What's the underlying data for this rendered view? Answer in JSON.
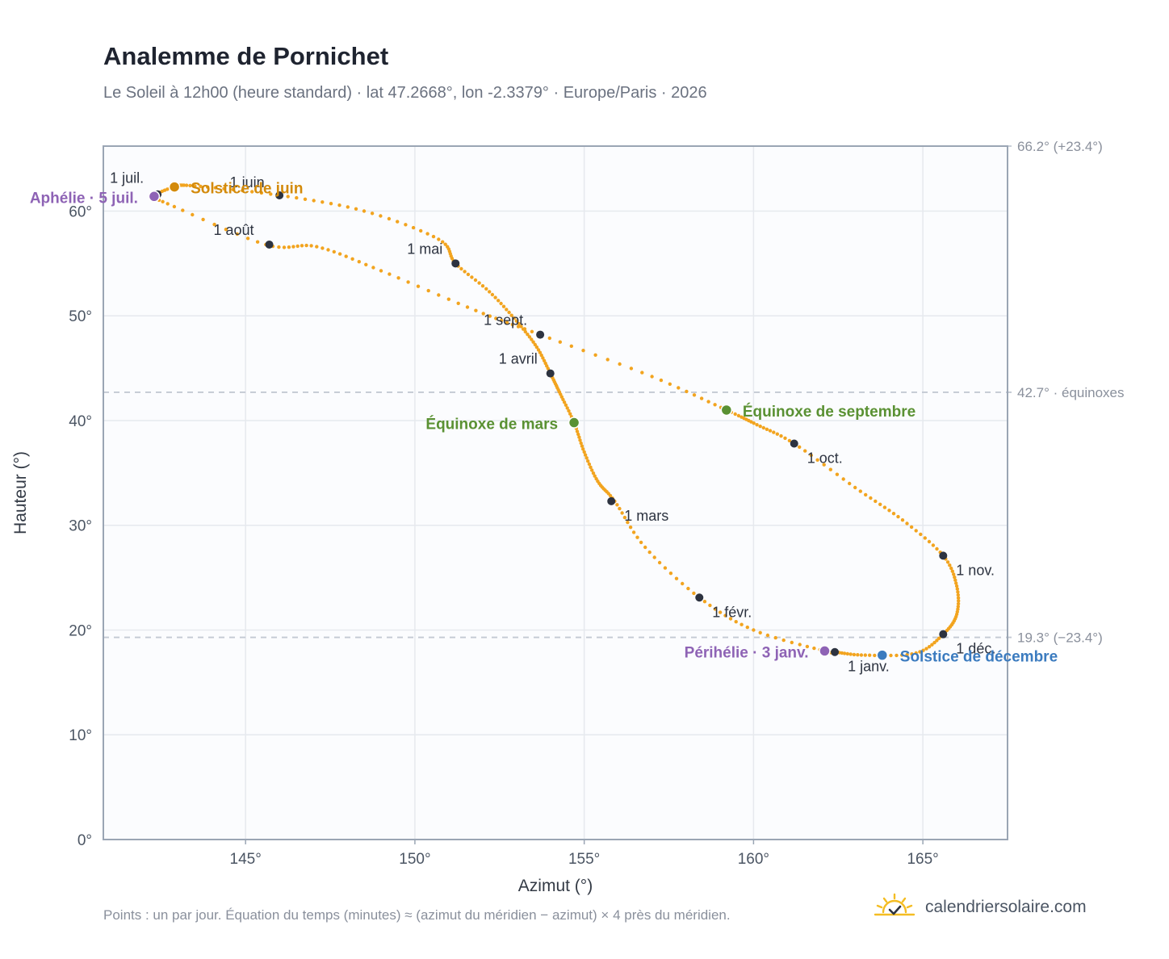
{
  "header": {
    "title": "Analemme de Pornichet",
    "subtitle": "Le Soleil à 12h00 (heure standard) · lat 47.2668°, lon -2.3379° · Europe/Paris · 2026"
  },
  "footer": {
    "note": "Points : un par jour. Équation du temps (minutes) ≈ (azimut du méridien − azimut) × 4 près du méridien.",
    "brand": "calendriersolaire.com"
  },
  "colors": {
    "curve": "#f2a41f",
    "month_marker": "#2d3340",
    "equinox": "#5a9133",
    "june_solstice": "#d38a0b",
    "december_solstice": "#3b7bbf",
    "apsides": "#8e63b5",
    "reference_line": "#c3c9d3",
    "grid": "#e6e9ee",
    "frame": "#9aa5b4",
    "plot_bg": "#fbfcfe"
  },
  "chart_data": {
    "type": "scatter",
    "xlabel": "Azimut (°)",
    "ylabel": "Hauteur (°)",
    "xlim": [
      140.8,
      167.5
    ],
    "ylim": [
      0,
      66.2
    ],
    "xticks": [
      145,
      150,
      155,
      160,
      165
    ],
    "xtick_labels": [
      "145°",
      "150°",
      "155°",
      "160°",
      "165°"
    ],
    "yticks": [
      0,
      10,
      20,
      30,
      40,
      50,
      60
    ],
    "ytick_labels": [
      "0°",
      "10°",
      "20°",
      "30°",
      "40°",
      "50°",
      "60°"
    ],
    "grid": true,
    "reference_lines": [
      {
        "y": 66.2,
        "label": "66.2° (+23.4°)"
      },
      {
        "y": 42.7,
        "label": "42.7° · équinoxes"
      },
      {
        "y": 19.3,
        "label": "19.3° (−23.4°)"
      }
    ],
    "series": [
      {
        "marker": "one point per day",
        "x": [
          162.1,
          162.4,
          163.3,
          164.8,
          165.6,
          166.0,
          166.0,
          165.6,
          164.4,
          163.0,
          161.2,
          160.1,
          159.2,
          157.0,
          153.7,
          151.8,
          149.0,
          147.1,
          145.6,
          142.7,
          142.3,
          142.9,
          143.5,
          146.0,
          148.5,
          150.7,
          151.2,
          152.2,
          153.0,
          153.6,
          154.0,
          154.3,
          154.7,
          155.0,
          155.4,
          155.9,
          156.8,
          158.4,
          160.0,
          162.1
        ],
        "y": [
          18.0,
          17.9,
          17.6,
          17.8,
          19.6,
          21.5,
          24.2,
          27.1,
          30.5,
          33.6,
          37.8,
          39.6,
          41.0,
          44.2,
          48.2,
          50.5,
          54.3,
          56.6,
          56.8,
          60.7,
          61.4,
          62.3,
          62.4,
          61.5,
          60.0,
          57.3,
          55.0,
          52.3,
          49.5,
          47.0,
          44.5,
          42.5,
          39.8,
          37.0,
          34.2,
          32.3,
          27.9,
          23.1,
          20.0,
          18.0
        ]
      }
    ],
    "month_markers": [
      {
        "label": "1 janv.",
        "x": 162.4,
        "y": 17.9
      },
      {
        "label": "1 févr.",
        "x": 158.4,
        "y": 23.1
      },
      {
        "label": "1 mars",
        "x": 155.8,
        "y": 32.3
      },
      {
        "label": "1 avril",
        "x": 154.0,
        "y": 44.5
      },
      {
        "label": "1 mai",
        "x": 151.2,
        "y": 55.0
      },
      {
        "label": "1 juin",
        "x": 146.0,
        "y": 61.5
      },
      {
        "label": "1 juil.",
        "x": 142.4,
        "y": 61.6
      },
      {
        "label": "1 août",
        "x": 145.7,
        "y": 56.8
      },
      {
        "label": "1 sept.",
        "x": 153.7,
        "y": 48.2
      },
      {
        "label": "1 oct.",
        "x": 161.2,
        "y": 37.8
      },
      {
        "label": "1 nov.",
        "x": 165.6,
        "y": 27.1
      },
      {
        "label": "1 déc.",
        "x": 165.6,
        "y": 19.6
      }
    ],
    "events": [
      {
        "label": "Solstice de juin",
        "x": 142.9,
        "y": 62.3,
        "color_key": "june_solstice"
      },
      {
        "label": "Solstice de décembre",
        "x": 163.8,
        "y": 17.6,
        "color_key": "december_solstice"
      },
      {
        "label": "Équinoxe de mars",
        "x": 154.7,
        "y": 39.8,
        "color_key": "equinox"
      },
      {
        "label": "Équinoxe de septembre",
        "x": 159.2,
        "y": 41.0,
        "color_key": "equinox"
      },
      {
        "label": "Aphélie · 5 juil.",
        "x": 142.3,
        "y": 61.4,
        "color_key": "apsides"
      },
      {
        "label": "Périhélie · 3 janv.",
        "x": 162.1,
        "y": 18.0,
        "color_key": "apsides"
      }
    ]
  }
}
